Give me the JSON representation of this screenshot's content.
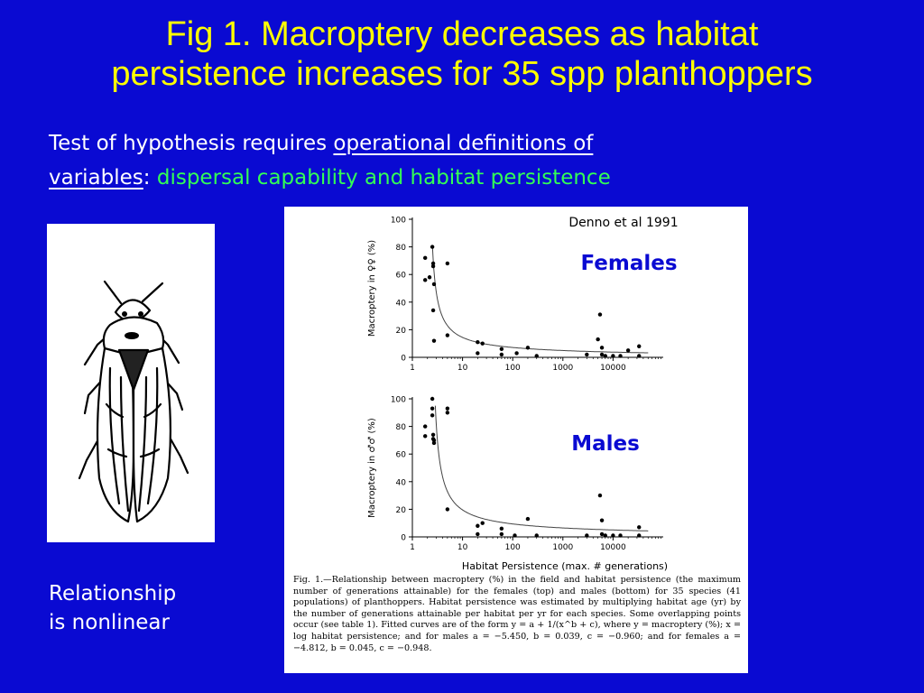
{
  "slide": {
    "title_line1": "Fig 1. Macroptery decreases as habitat",
    "title_line2": "persistence increases for 35 spp planthoppers",
    "intro_plain": "Test of hypothesis requires ",
    "intro_underlined_1": "operational definitions of",
    "intro_underlined_2": "variables",
    "intro_colon": ":",
    "intro_green": " dispersal capability and habitat persistence",
    "left_caption_line1": "Relationship",
    "left_caption_line2": "is nonlinear",
    "colors": {
      "background": "#0a0ad2",
      "title": "#ffff00",
      "text": "#ffffff",
      "highlight": "#33ff55",
      "panel_label": "#0a0ad2"
    }
  },
  "insect_image": {
    "icon": "planthopper-drawing-icon"
  },
  "figure": {
    "citation": "Denno et al 1991",
    "panel_label_top": "Females",
    "panel_label_bottom": "Males",
    "caption": "Fig. 1.—Relationship between macroptery (%) in the field and habitat persistence (the maximum number of generations attainable) for the females (top) and males (bottom) for 35 species (41 populations) of planthoppers. Habitat persistence was estimated by multiplying habitat age (yr) by the number of generations attainable per habitat per yr for each species. Some overlapping points occur (see table 1). Fitted curves are of the form y = a + 1/(x^b + c), where y = macroptery (%); x = log habitat persistence; and for males a = −5.450, b = 0.039, c = −0.960; and for females a = −4.812, b = 0.045, c = −0.948."
  },
  "chart_data": [
    {
      "type": "scatter",
      "panel": "females",
      "xlabel": "",
      "ylabel": "Macroptery in ♀♀ (%)",
      "x_scale": "log",
      "xlim": [
        1,
        100000
      ],
      "ylim": [
        0,
        100
      ],
      "x_ticks": [
        "1",
        "10",
        "100",
        "1000",
        "10000"
      ],
      "y_ticks": [
        "0",
        "20",
        "40",
        "60",
        "80",
        "100"
      ],
      "points": [
        [
          1.8,
          72
        ],
        [
          1.8,
          56
        ],
        [
          2.2,
          58
        ],
        [
          2.5,
          80
        ],
        [
          2.6,
          68
        ],
        [
          2.6,
          66
        ],
        [
          2.7,
          53
        ],
        [
          2.6,
          34
        ],
        [
          2.7,
          12
        ],
        [
          5,
          68
        ],
        [
          5,
          16
        ],
        [
          20,
          11
        ],
        [
          25,
          10
        ],
        [
          20,
          3
        ],
        [
          60,
          6
        ],
        [
          60,
          2
        ],
        [
          120,
          3
        ],
        [
          200,
          7
        ],
        [
          300,
          1
        ],
        [
          3000,
          2
        ],
        [
          5000,
          13
        ],
        [
          5500,
          31
        ],
        [
          6000,
          7
        ],
        [
          6000,
          2
        ],
        [
          7000,
          1
        ],
        [
          10000,
          1
        ],
        [
          14000,
          1
        ],
        [
          20000,
          5
        ],
        [
          33000,
          8
        ],
        [
          33000,
          1
        ]
      ],
      "fitted_curve": {
        "a": -4.812,
        "b": 0.045,
        "c": -0.948
      }
    },
    {
      "type": "scatter",
      "panel": "males",
      "xlabel": "Habitat Persistence (max. # generations)",
      "ylabel": "Macroptery in ♂♂ (%)",
      "x_scale": "log",
      "xlim": [
        1,
        100000
      ],
      "ylim": [
        0,
        100
      ],
      "x_ticks": [
        "1",
        "10",
        "100",
        "1000",
        "10000"
      ],
      "y_ticks": [
        "0",
        "20",
        "40",
        "60",
        "80",
        "100"
      ],
      "points": [
        [
          1.8,
          80
        ],
        [
          1.8,
          73
        ],
        [
          2.5,
          100
        ],
        [
          2.5,
          93
        ],
        [
          2.5,
          88
        ],
        [
          2.6,
          74
        ],
        [
          2.6,
          71
        ],
        [
          2.7,
          68
        ],
        [
          2.7,
          70
        ],
        [
          5,
          93
        ],
        [
          5,
          90
        ],
        [
          5,
          20
        ],
        [
          20,
          8
        ],
        [
          25,
          10
        ],
        [
          20,
          2
        ],
        [
          60,
          6
        ],
        [
          60,
          2
        ],
        [
          110,
          1
        ],
        [
          200,
          13
        ],
        [
          300,
          1
        ],
        [
          3000,
          1
        ],
        [
          5500,
          30
        ],
        [
          6000,
          12
        ],
        [
          6000,
          2
        ],
        [
          7000,
          1
        ],
        [
          10000,
          1
        ],
        [
          14000,
          1
        ],
        [
          33000,
          7
        ],
        [
          33000,
          1
        ]
      ],
      "fitted_curve": {
        "a": -5.45,
        "b": 0.039,
        "c": -0.96
      }
    }
  ]
}
